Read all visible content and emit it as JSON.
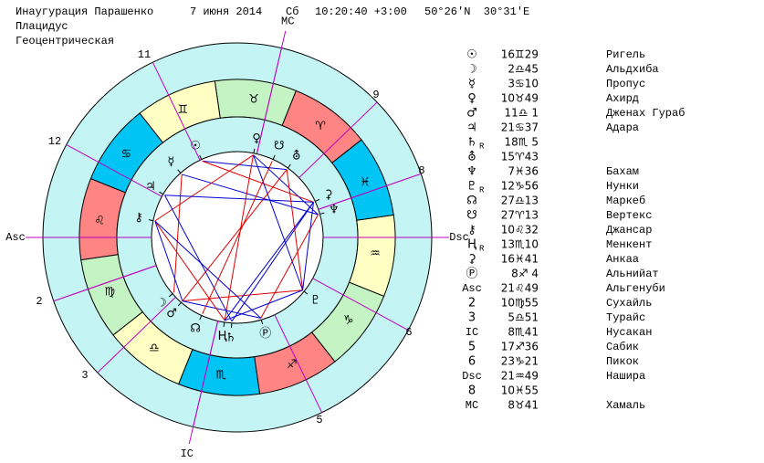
{
  "header": {
    "title": "Инаугурация Парашенко",
    "date": "7 июня 2014",
    "weekday": "Сб",
    "time": "10:20:40 +3:00",
    "coords": "50°26'N  30°31'E",
    "house_system": "Плацидус",
    "mode": "Геоцентрическая"
  },
  "wheel": {
    "house_numbers": [
      "11",
      "9",
      "8",
      "12",
      "2",
      "3",
      "6",
      "5"
    ]
  },
  "table": {
    "rows": [
      {
        "symbol": "☉",
        "pos": "16♊29",
        "star": "Ригель"
      },
      {
        "symbol": "☽",
        "pos": "2♎45",
        "star": "Альдхиба"
      },
      {
        "symbol": "☿",
        "pos": "3♋10",
        "star": "Пропус"
      },
      {
        "symbol": "♀",
        "pos": "10♉49",
        "star": "Ахирд"
      },
      {
        "symbol": "♂",
        "pos": "11♎ 1",
        "star": "Дженах Гураб"
      },
      {
        "symbol": "♃",
        "pos": "21♋37",
        "star": "Адара"
      },
      {
        "symbol": "♄",
        "retro": "R",
        "pos": "18♏ 5"
      },
      {
        "symbol": "⛢",
        "pos": "15♈43"
      },
      {
        "symbol": "♆",
        "pos": "7♓36",
        "star": "Бахам"
      },
      {
        "symbol": "♇",
        "retro": "R",
        "pos": "12♑56",
        "star": "Нунки"
      },
      {
        "symbol": "☊",
        "pos": "27♎13",
        "star": "Маркеб"
      },
      {
        "symbol": "☋",
        "pos": "27♈13",
        "star": "Вертекс"
      },
      {
        "symbol": "⚷",
        "pos": "10♌32",
        "star": "Джансар"
      },
      {
        "symbol": "Ⱨ",
        "retro": "R",
        "pos": "13♏10",
        "star": "Менкент"
      },
      {
        "symbol": "⚳",
        "pos": "16♓41",
        "star": "Анкаа"
      },
      {
        "symbol": "Ⓟ",
        "pos": "8♐ 4",
        "star": "Альнийат"
      },
      {
        "symbol": "Asc",
        "pos": "21♌49",
        "star": "Альгенуби"
      },
      {
        "symbol": "2",
        "pos": "10♍55",
        "star": "Сухайль"
      },
      {
        "symbol": "3",
        "pos": "5♎51",
        "star": "Турайс"
      },
      {
        "symbol": "IC",
        "pos": "8♏41",
        "star": "Нусакан"
      },
      {
        "symbol": "5",
        "pos": "17♐36",
        "star": "Сабик"
      },
      {
        "symbol": "6",
        "pos": "23♑21",
        "star": "Пикок"
      },
      {
        "symbol": "Dsc",
        "pos": "21♒49",
        "star": "Нашира"
      },
      {
        "symbol": "8",
        "pos": "10♓55"
      },
      {
        "symbol": "MC",
        "pos": "8♉41",
        "star": "Хамаль"
      }
    ]
  }
}
